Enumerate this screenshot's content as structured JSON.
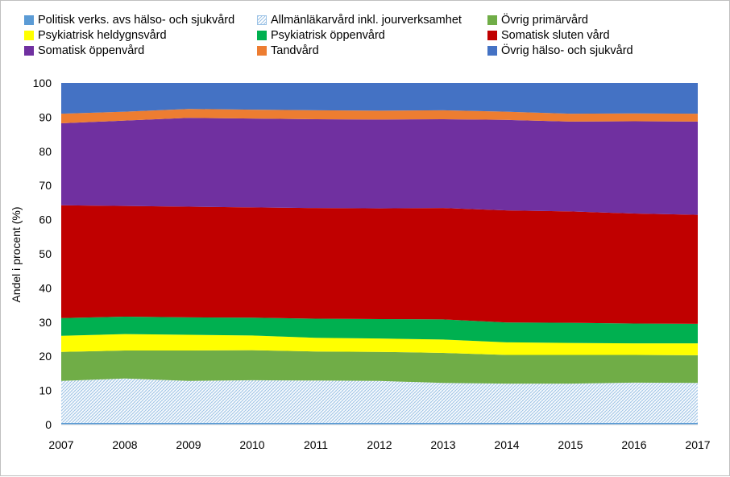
{
  "chart_data": {
    "type": "area",
    "stacked": true,
    "x": [
      2007,
      2008,
      2009,
      2010,
      2011,
      2012,
      2013,
      2014,
      2015,
      2016,
      2017
    ],
    "ylabel": "Andel i procent (%)",
    "ylim": [
      0,
      100
    ],
    "yticks": [
      0,
      10,
      20,
      30,
      40,
      50,
      60,
      70,
      80,
      90,
      100
    ],
    "grid": false,
    "legend_position": "top",
    "series": [
      {
        "name": "Politisk verks. avs hälso- och sjukvård",
        "color": "#5B9BD5",
        "pattern": false,
        "values": [
          0.5,
          0.5,
          0.5,
          0.5,
          0.5,
          0.5,
          0.5,
          0.5,
          0.5,
          0.5,
          0.5
        ]
      },
      {
        "name": "Allmänläkarvård inkl. jourverksamhet",
        "color": "#9DC3E6",
        "pattern": true,
        "values": [
          12.3,
          13.0,
          12.3,
          12.5,
          12.4,
          12.3,
          11.7,
          11.5,
          11.5,
          11.8,
          11.7
        ]
      },
      {
        "name": "Övrig primärvård",
        "color": "#70AD47",
        "pattern": false,
        "values": [
          8.5,
          8.2,
          8.9,
          8.8,
          8.5,
          8.5,
          8.8,
          8.4,
          8.4,
          8.1,
          8.1
        ]
      },
      {
        "name": "Psykiatrisk heldygnsvård",
        "color": "#FFFF00",
        "pattern": false,
        "values": [
          4.7,
          4.8,
          4.6,
          4.3,
          4.0,
          3.9,
          3.9,
          3.7,
          3.5,
          3.4,
          3.5
        ]
      },
      {
        "name": "Psykiatrisk öppenvård",
        "color": "#00B050",
        "pattern": false,
        "values": [
          5.2,
          5.1,
          5.1,
          5.2,
          5.6,
          5.7,
          5.9,
          5.8,
          5.9,
          5.8,
          5.7
        ]
      },
      {
        "name": "Somatisk sluten vård",
        "color": "#C00000",
        "pattern": false,
        "values": [
          33.0,
          32.4,
          32.4,
          32.3,
          32.4,
          32.4,
          32.6,
          32.8,
          32.6,
          32.2,
          31.9
        ]
      },
      {
        "name": "Somatisk öppenvård",
        "color": "#7030A0",
        "pattern": false,
        "values": [
          24.0,
          25.0,
          26.0,
          26.0,
          26.0,
          26.0,
          26.0,
          26.5,
          26.3,
          27.0,
          27.3
        ]
      },
      {
        "name": "Tandvård",
        "color": "#ED7D31",
        "pattern": false,
        "values": [
          2.8,
          2.6,
          2.6,
          2.6,
          2.6,
          2.6,
          2.6,
          2.4,
          2.3,
          2.3,
          2.3
        ]
      },
      {
        "name": "Övrig hälso- och sjukvård",
        "color": "#4472C4",
        "pattern": false,
        "values": [
          9.0,
          8.4,
          7.6,
          7.8,
          8.0,
          8.1,
          8.0,
          8.4,
          9.0,
          8.9,
          9.0
        ]
      }
    ]
  }
}
